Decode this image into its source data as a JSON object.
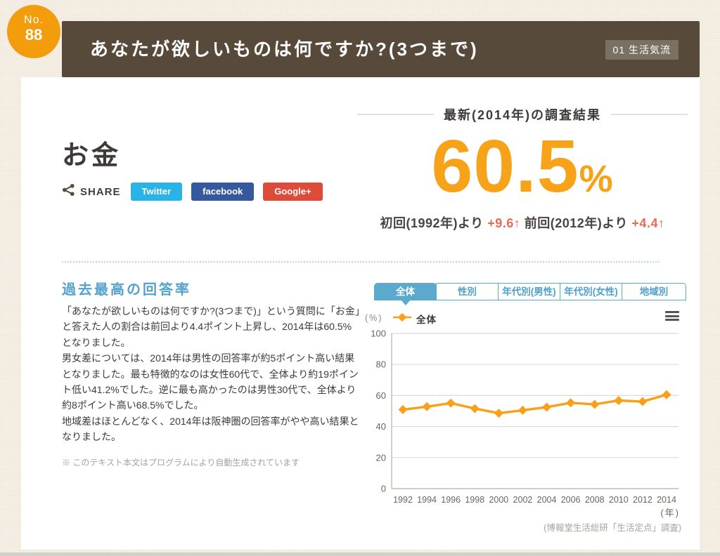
{
  "page": {
    "number_label": "No.",
    "number": "88",
    "title": "あなたが欲しいものは何ですか?(3つまで)",
    "category_badge": "01 生活気流"
  },
  "topic": {
    "name": "お金",
    "share_label": "SHARE",
    "share_buttons": [
      {
        "label": "Twitter",
        "color": "#2ab3e6"
      },
      {
        "label": "facebook",
        "color": "#35589e"
      },
      {
        "label": "Google+",
        "color": "#dd4c3a"
      }
    ]
  },
  "latest": {
    "heading": "最新(2014年)の調査結果",
    "value": "60.5",
    "unit": "%",
    "first_label": "初回(1992年)より ",
    "first_delta": "+9.6↑",
    "prev_label": " 前回(2012年)より ",
    "prev_delta": "+4.4↑"
  },
  "body": {
    "heading": "過去最高の回答率",
    "paragraphs": [
      "「あなたが欲しいものは何ですか?(3つまで)」という質問に「お金」と答えた人の割合は前回より4.4ポイント上昇し、2014年は60.5%となりました。",
      "男女差については、2014年は男性の回答率が約5ポイント高い結果となりました。最も特徴的なのは女性60代で、全体より約19ポイント低い41.2%でした。逆に最も高かったのは男性30代で、全体より約8ポイント高い68.5%でした。",
      "地域差はほとんどなく、2014年は阪神圏の回答率がやや高い結果となりました。"
    ],
    "note": "※ このテキスト本文はプログラムにより自動生成されています"
  },
  "chart": {
    "tabs": [
      {
        "label": "全体",
        "active": true
      },
      {
        "label": "性別",
        "active": false
      },
      {
        "label": "年代別(男性)",
        "active": false
      },
      {
        "label": "年代別(女性)",
        "active": false
      },
      {
        "label": "地域別",
        "active": false
      }
    ],
    "unit_label": "(%)",
    "legend": "全体",
    "axis_unit": "(年)",
    "source": "(博報堂生活総研「生活定点」調査)"
  },
  "chart_data": {
    "type": "line",
    "title": "全体",
    "categories": [
      "1992",
      "1994",
      "1996",
      "1998",
      "2000",
      "2002",
      "2004",
      "2006",
      "2008",
      "2010",
      "2012",
      "2014"
    ],
    "values": [
      50.9,
      52.8,
      55.1,
      51.6,
      48.6,
      50.5,
      52.5,
      55.3,
      54.3,
      56.8,
      56.1,
      60.5
    ],
    "xlabel": "年",
    "ylabel": "%",
    "ylim": [
      0,
      100
    ],
    "yticks": [
      0,
      20,
      40,
      60,
      80,
      100
    ],
    "grid": true,
    "line_color": "#f9a01b",
    "legend_position": "top-left"
  },
  "colors": {
    "header_brown": "#584a3b",
    "header_badge": "#7b7163",
    "number_badge_orange": "#f49d0c",
    "accent_orange": "#f7a319",
    "delta_red": "#e96a55",
    "tab_blue": "#5ca9ce",
    "heading_blue": "#54a1cc",
    "text_dark": "#3e3a39",
    "note_gray": "#a8a29b",
    "background": "#f3ede2"
  }
}
